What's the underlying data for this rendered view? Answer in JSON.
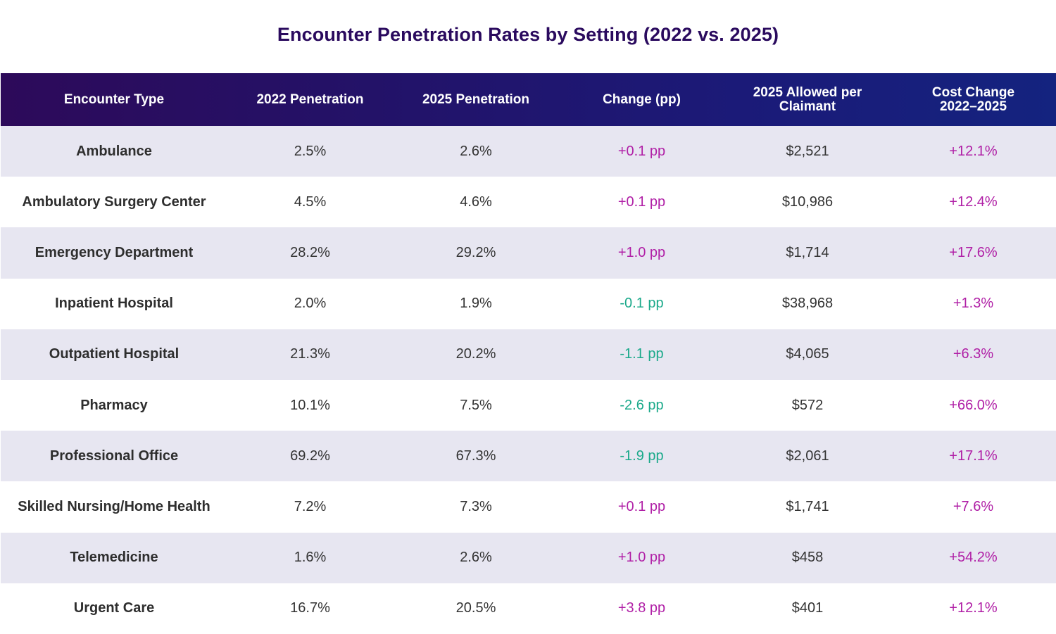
{
  "title": "Encounter Penetration Rates by Setting (2022 vs. 2025)",
  "colors": {
    "header_start": "#2d0a5a",
    "header_end": "#14237f",
    "positive": "#b01fa6",
    "negative": "#1aa98a",
    "stripe": "#e7e6f1"
  },
  "chart_data": {
    "type": "table",
    "title": "Encounter Penetration Rates by Setting (2022 vs. 2025)",
    "columns": [
      "Encounter Type",
      "2022 Penetration",
      "2025 Penetration",
      "Change (pp)",
      "2025 Allowed per Claimant",
      "Cost Change 2022–2025"
    ],
    "rows": [
      {
        "type": "Ambulance",
        "p2022": "2.5%",
        "p2025": "2.6%",
        "change": "+0.1 pp",
        "allowed": "$2,521",
        "cost": "+12.1%"
      },
      {
        "type": "Ambulatory Surgery Center",
        "p2022": "4.5%",
        "p2025": "4.6%",
        "change": "+0.1 pp",
        "allowed": "$10,986",
        "cost": "+12.4%"
      },
      {
        "type": "Emergency Department",
        "p2022": "28.2%",
        "p2025": "29.2%",
        "change": "+1.0 pp",
        "allowed": "$1,714",
        "cost": "+17.6%"
      },
      {
        "type": "Inpatient Hospital",
        "p2022": "2.0%",
        "p2025": "1.9%",
        "change": "-0.1 pp",
        "allowed": "$38,968",
        "cost": "+1.3%"
      },
      {
        "type": "Outpatient Hospital",
        "p2022": "21.3%",
        "p2025": "20.2%",
        "change": "-1.1 pp",
        "allowed": "$4,065",
        "cost": "+6.3%"
      },
      {
        "type": "Pharmacy",
        "p2022": "10.1%",
        "p2025": "7.5%",
        "change": "-2.6 pp",
        "allowed": "$572",
        "cost": "+66.0%"
      },
      {
        "type": "Professional Office",
        "p2022": "69.2%",
        "p2025": "67.3%",
        "change": "-1.9 pp",
        "allowed": "$2,061",
        "cost": "+17.1%"
      },
      {
        "type": "Skilled Nursing/Home Health",
        "p2022": "7.2%",
        "p2025": "7.3%",
        "change": "+0.1 pp",
        "allowed": "$1,741",
        "cost": "+7.6%"
      },
      {
        "type": "Telemedicine",
        "p2022": "1.6%",
        "p2025": "2.6%",
        "change": "+1.0 pp",
        "allowed": "$458",
        "cost": "+54.2%"
      },
      {
        "type": "Urgent Care",
        "p2022": "16.7%",
        "p2025": "20.5%",
        "change": "+3.8 pp",
        "allowed": "$401",
        "cost": "+12.1%"
      }
    ]
  }
}
